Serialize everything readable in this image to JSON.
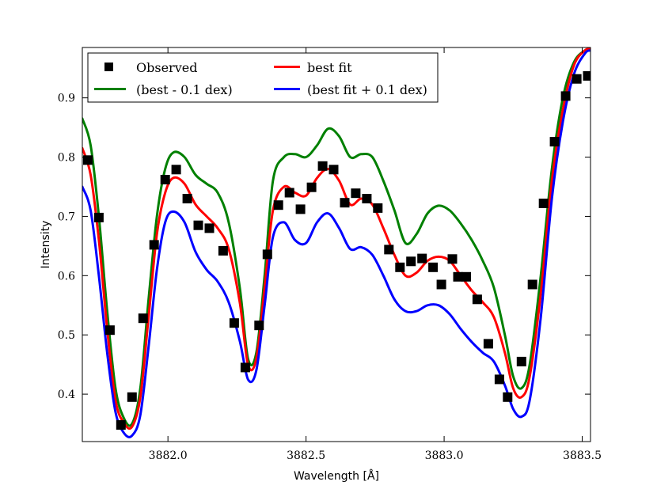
{
  "chart_data": {
    "type": "line",
    "title": "",
    "xlabel": "Wavelength [Å]",
    "ylabel": "Intensity",
    "xlim": [
      3881.69,
      3883.53
    ],
    "ylim": [
      0.32,
      0.985
    ],
    "xticks": [
      3882.0,
      3882.5,
      3883.0,
      3883.5
    ],
    "xtick_labels": [
      "3882.0",
      "3882.5",
      "3883.0",
      "3883.5"
    ],
    "yticks": [
      0.4,
      0.5,
      0.6,
      0.7,
      0.8,
      0.9
    ],
    "ytick_labels": [
      "0.4",
      "0.5",
      "0.6",
      "0.7",
      "0.8",
      "0.9"
    ],
    "grid": false,
    "legend_position": "top-left",
    "series": [
      {
        "name": "Observed",
        "kind": "scatter",
        "marker": "square",
        "color": "#000000",
        "x": [
          3881.71,
          3881.75,
          3881.79,
          3881.83,
          3881.87,
          3881.91,
          3881.95,
          3881.99,
          3882.03,
          3882.07,
          3882.11,
          3882.15,
          3882.2,
          3882.24,
          3882.28,
          3882.33,
          3882.36,
          3882.4,
          3882.44,
          3882.48,
          3882.52,
          3882.56,
          3882.6,
          3882.64,
          3882.68,
          3882.72,
          3882.76,
          3882.8,
          3882.84,
          3882.88,
          3882.92,
          3882.96,
          3882.99,
          3883.03,
          3883.05,
          3883.08,
          3883.12,
          3883.16,
          3883.2,
          3883.23,
          3883.28,
          3883.32,
          3883.36,
          3883.4,
          3883.44,
          3883.48,
          3883.52
        ],
        "y": [
          0.795,
          0.698,
          0.508,
          0.348,
          0.395,
          0.528,
          0.652,
          0.762,
          0.779,
          0.73,
          0.685,
          0.68,
          0.642,
          0.52,
          0.445,
          0.516,
          0.636,
          0.719,
          0.74,
          0.712,
          0.749,
          0.785,
          0.779,
          0.723,
          0.739,
          0.73,
          0.714,
          0.644,
          0.614,
          0.624,
          0.629,
          0.614,
          0.585,
          0.628,
          0.598,
          0.598,
          0.56,
          0.485,
          0.425,
          0.395,
          0.455,
          0.585,
          0.722,
          0.826,
          0.903,
          0.932,
          0.937
        ]
      },
      {
        "name": "(best - 0.1 dex)",
        "kind": "line",
        "color": "#008000",
        "x": [
          3881.69,
          3881.72,
          3881.75,
          3881.78,
          3881.81,
          3881.84,
          3881.87,
          3881.9,
          3881.93,
          3881.96,
          3881.99,
          3882.02,
          3882.06,
          3882.1,
          3882.14,
          3882.18,
          3882.22,
          3882.26,
          3882.29,
          3882.32,
          3882.35,
          3882.38,
          3882.42,
          3882.46,
          3882.5,
          3882.54,
          3882.58,
          3882.62,
          3882.66,
          3882.7,
          3882.74,
          3882.78,
          3882.82,
          3882.86,
          3882.9,
          3882.94,
          3882.98,
          3883.02,
          3883.06,
          3883.1,
          3883.14,
          3883.18,
          3883.22,
          3883.25,
          3883.28,
          3883.31,
          3883.35,
          3883.39,
          3883.43,
          3883.47,
          3883.51,
          3883.53
        ],
        "y": [
          0.865,
          0.82,
          0.7,
          0.54,
          0.41,
          0.36,
          0.35,
          0.41,
          0.56,
          0.7,
          0.78,
          0.808,
          0.8,
          0.77,
          0.755,
          0.74,
          0.69,
          0.58,
          0.46,
          0.47,
          0.6,
          0.76,
          0.8,
          0.805,
          0.8,
          0.82,
          0.848,
          0.835,
          0.8,
          0.805,
          0.8,
          0.76,
          0.71,
          0.655,
          0.67,
          0.705,
          0.718,
          0.71,
          0.688,
          0.66,
          0.625,
          0.58,
          0.5,
          0.43,
          0.41,
          0.45,
          0.6,
          0.78,
          0.9,
          0.96,
          0.98,
          0.982
        ]
      },
      {
        "name": "best fit",
        "kind": "line",
        "color": "#ff0000",
        "x": [
          3881.69,
          3881.72,
          3881.75,
          3881.78,
          3881.81,
          3881.84,
          3881.87,
          3881.9,
          3881.93,
          3881.96,
          3881.99,
          3882.02,
          3882.06,
          3882.1,
          3882.14,
          3882.18,
          3882.22,
          3882.26,
          3882.29,
          3882.32,
          3882.35,
          3882.38,
          3882.42,
          3882.46,
          3882.5,
          3882.54,
          3882.58,
          3882.62,
          3882.66,
          3882.7,
          3882.74,
          3882.78,
          3882.82,
          3882.86,
          3882.9,
          3882.94,
          3882.98,
          3883.02,
          3883.06,
          3883.1,
          3883.14,
          3883.18,
          3883.22,
          3883.25,
          3883.28,
          3883.31,
          3883.35,
          3883.39,
          3883.43,
          3883.47,
          3883.51,
          3883.53
        ],
        "y": [
          0.815,
          0.77,
          0.66,
          0.51,
          0.39,
          0.352,
          0.345,
          0.395,
          0.53,
          0.67,
          0.74,
          0.765,
          0.755,
          0.72,
          0.7,
          0.68,
          0.645,
          0.555,
          0.45,
          0.46,
          0.58,
          0.71,
          0.75,
          0.74,
          0.735,
          0.765,
          0.78,
          0.76,
          0.72,
          0.73,
          0.72,
          0.68,
          0.635,
          0.6,
          0.605,
          0.625,
          0.632,
          0.625,
          0.6,
          0.575,
          0.555,
          0.53,
          0.47,
          0.41,
          0.395,
          0.43,
          0.57,
          0.76,
          0.88,
          0.955,
          0.98,
          0.982
        ]
      },
      {
        "name": "(best fit + 0.1 dex)",
        "kind": "line",
        "color": "#0000ff",
        "x": [
          3881.69,
          3881.72,
          3881.75,
          3881.78,
          3881.81,
          3881.84,
          3881.87,
          3881.9,
          3881.93,
          3881.96,
          3881.99,
          3882.02,
          3882.06,
          3882.1,
          3882.14,
          3882.18,
          3882.22,
          3882.26,
          3882.29,
          3882.32,
          3882.35,
          3882.38,
          3882.42,
          3882.46,
          3882.5,
          3882.54,
          3882.58,
          3882.62,
          3882.66,
          3882.7,
          3882.74,
          3882.78,
          3882.82,
          3882.86,
          3882.9,
          3882.94,
          3882.98,
          3883.02,
          3883.06,
          3883.1,
          3883.14,
          3883.18,
          3883.22,
          3883.25,
          3883.28,
          3883.31,
          3883.35,
          3883.39,
          3883.43,
          3883.47,
          3883.51,
          3883.53
        ],
        "y": [
          0.75,
          0.71,
          0.6,
          0.47,
          0.37,
          0.335,
          0.33,
          0.365,
          0.48,
          0.61,
          0.69,
          0.708,
          0.69,
          0.64,
          0.61,
          0.59,
          0.555,
          0.49,
          0.425,
          0.44,
          0.55,
          0.665,
          0.69,
          0.66,
          0.655,
          0.69,
          0.705,
          0.68,
          0.645,
          0.648,
          0.635,
          0.6,
          0.56,
          0.54,
          0.54,
          0.55,
          0.55,
          0.535,
          0.51,
          0.488,
          0.47,
          0.455,
          0.415,
          0.375,
          0.362,
          0.39,
          0.53,
          0.73,
          0.86,
          0.94,
          0.975,
          0.98
        ]
      }
    ],
    "legend": {
      "columns": 2,
      "entries": [
        "Observed",
        "best fit",
        "(best - 0.1 dex)",
        "(best fit + 0.1 dex)"
      ]
    }
  }
}
